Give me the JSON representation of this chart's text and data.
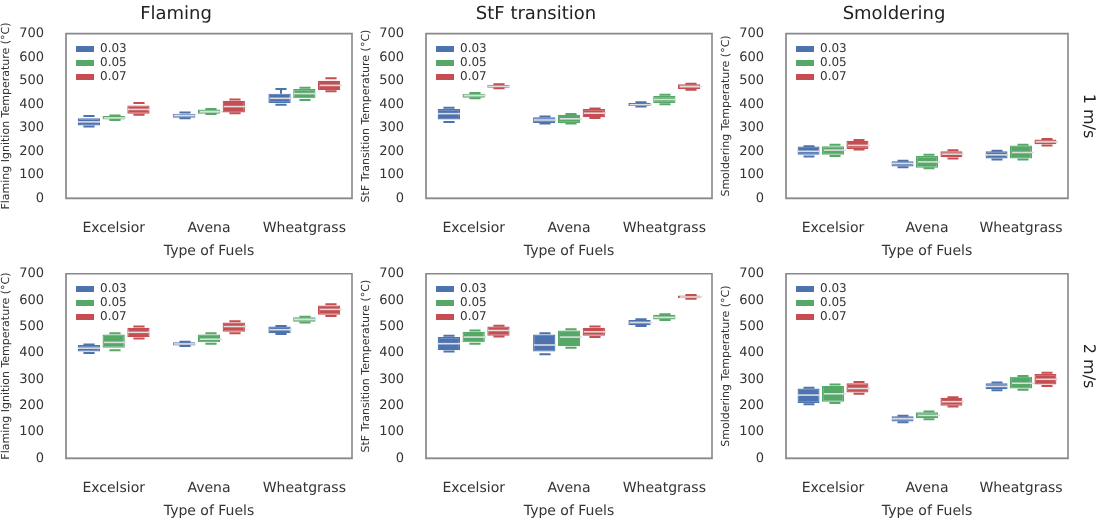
{
  "chart_data": [
    {
      "type": "box",
      "title": "Flaming",
      "xlabel": "Type of Fuels",
      "ylabel": "Flaming Ignition Temperature (°C)",
      "categories": [
        "Excelsior",
        "Avena",
        "Wheatgrass"
      ],
      "ylim": [
        0,
        700
      ],
      "yticks": [
        0,
        100,
        200,
        300,
        400,
        500,
        600,
        700
      ],
      "grid": false,
      "legend": "top left",
      "series": [
        {
          "name": "0.03",
          "color": "#4c72b0",
          "boxes": [
            {
              "low": 305,
              "q1": 310,
              "median": 325,
              "q3": 340,
              "high": 350
            },
            {
              "low": 340,
              "q1": 343,
              "median": 352,
              "q3": 360,
              "high": 365
            },
            {
              "low": 398,
              "q1": 405,
              "median": 425,
              "q3": 445,
              "high": 465
            }
          ]
        },
        {
          "name": "0.05",
          "color": "#55a868",
          "boxes": [
            {
              "low": 333,
              "q1": 335,
              "median": 342,
              "q3": 350,
              "high": 352
            },
            {
              "low": 358,
              "q1": 360,
              "median": 368,
              "q3": 378,
              "high": 380
            },
            {
              "low": 418,
              "q1": 425,
              "median": 445,
              "q3": 465,
              "high": 470
            }
          ]
        },
        {
          "name": "0.07",
          "color": "#c44e52",
          "boxes": [
            {
              "low": 355,
              "q1": 360,
              "median": 378,
              "q3": 395,
              "high": 405
            },
            {
              "low": 362,
              "q1": 365,
              "median": 390,
              "q3": 415,
              "high": 420
            },
            {
              "low": 455,
              "q1": 460,
              "median": 480,
              "q3": 500,
              "high": 510
            }
          ]
        }
      ]
    },
    {
      "type": "box",
      "title": "StF transition",
      "xlabel": "Type of Fuels",
      "ylabel": "StF Transition Temperature (°C)",
      "categories": [
        "Excelsior",
        "Avena",
        "Wheatgrass"
      ],
      "ylim": [
        0,
        700
      ],
      "yticks": [
        0,
        100,
        200,
        300,
        400,
        500,
        600,
        700
      ],
      "grid": false,
      "legend": "top left",
      "series": [
        {
          "name": "0.03",
          "color": "#4c72b0",
          "boxes": [
            {
              "low": 325,
              "q1": 335,
              "median": 360,
              "q3": 380,
              "high": 385
            },
            {
              "low": 318,
              "q1": 320,
              "median": 333,
              "q3": 345,
              "high": 348
            },
            {
              "low": 390,
              "q1": 392,
              "median": 398,
              "q3": 405,
              "high": 408
            }
          ]
        },
        {
          "name": "0.05",
          "color": "#55a868",
          "boxes": [
            {
              "low": 425,
              "q1": 428,
              "median": 437,
              "q3": 445,
              "high": 448
            },
            {
              "low": 318,
              "q1": 320,
              "median": 338,
              "q3": 355,
              "high": 358
            },
            {
              "low": 400,
              "q1": 405,
              "median": 420,
              "q3": 435,
              "high": 440
            }
          ]
        },
        {
          "name": "0.07",
          "color": "#c44e52",
          "boxes": [
            {
              "low": 468,
              "q1": 470,
              "median": 476,
              "q3": 482,
              "high": 485
            },
            {
              "low": 342,
              "q1": 345,
              "median": 362,
              "q3": 380,
              "high": 382
            },
            {
              "low": 462,
              "q1": 465,
              "median": 475,
              "q3": 485,
              "high": 487
            }
          ]
        }
      ]
    },
    {
      "type": "box",
      "title": "Smoldering",
      "xlabel": "Type of Fuels",
      "ylabel": "Smoldering Temperature (°C)",
      "categories": [
        "Excelsior",
        "Avena",
        "Wheatgrass"
      ],
      "ylim": [
        0,
        700
      ],
      "yticks": [
        0,
        100,
        200,
        300,
        400,
        500,
        600,
        700
      ],
      "grid": false,
      "legend": "top left",
      "annotations": [
        "1 m/s"
      ],
      "series": [
        {
          "name": "0.03",
          "color": "#4c72b0",
          "boxes": [
            {
              "low": 178,
              "q1": 185,
              "median": 200,
              "q3": 220,
              "high": 222
            },
            {
              "low": 132,
              "q1": 135,
              "median": 148,
              "q3": 158,
              "high": 160
            },
            {
              "low": 165,
              "q1": 170,
              "median": 185,
              "q3": 200,
              "high": 202
            }
          ]
        },
        {
          "name": "0.05",
          "color": "#55a868",
          "boxes": [
            {
              "low": 180,
              "q1": 185,
              "median": 205,
              "q3": 222,
              "high": 228
            },
            {
              "low": 128,
              "q1": 130,
              "median": 155,
              "q3": 180,
              "high": 185
            },
            {
              "low": 165,
              "q1": 170,
              "median": 195,
              "q3": 225,
              "high": 228
            }
          ]
        },
        {
          "name": "0.07",
          "color": "#c44e52",
          "boxes": [
            {
              "low": 208,
              "q1": 210,
              "median": 225,
              "q3": 245,
              "high": 248
            },
            {
              "low": 170,
              "q1": 175,
              "median": 188,
              "q3": 200,
              "high": 205
            },
            {
              "low": 225,
              "q1": 230,
              "median": 240,
              "q3": 250,
              "high": 252
            }
          ]
        }
      ]
    },
    {
      "type": "box",
      "xlabel": "Type of Fuels",
      "ylabel": "Flaming Ignition Temperature (°C)",
      "categories": [
        "Excelsior",
        "Avena",
        "Wheatgrass"
      ],
      "ylim": [
        0,
        700
      ],
      "yticks": [
        0,
        100,
        200,
        300,
        400,
        500,
        600,
        700
      ],
      "grid": false,
      "legend": "top left",
      "series": [
        {
          "name": "0.03",
          "color": "#4c72b0",
          "boxes": [
            {
              "low": 400,
              "q1": 405,
              "median": 418,
              "q3": 430,
              "high": 432
            },
            {
              "low": 426,
              "q1": 428,
              "median": 434,
              "q3": 440,
              "high": 442
            },
            {
              "low": 472,
              "q1": 475,
              "median": 488,
              "q3": 500,
              "high": 502
            }
          ]
        },
        {
          "name": "0.05",
          "color": "#55a868",
          "boxes": [
            {
              "low": 410,
              "q1": 420,
              "median": 440,
              "q3": 470,
              "high": 475
            },
            {
              "low": 435,
              "q1": 440,
              "median": 452,
              "q3": 470,
              "high": 475
            },
            {
              "low": 515,
              "q1": 518,
              "median": 527,
              "q3": 535,
              "high": 537
            }
          ]
        },
        {
          "name": "0.07",
          "color": "#c44e52",
          "boxes": [
            {
              "low": 455,
              "q1": 460,
              "median": 478,
              "q3": 495,
              "high": 500
            },
            {
              "low": 475,
              "q1": 480,
              "median": 500,
              "q3": 515,
              "high": 520
            },
            {
              "low": 540,
              "q1": 545,
              "median": 565,
              "q3": 580,
              "high": 585
            }
          ]
        }
      ]
    },
    {
      "type": "box",
      "xlabel": "Type of Fuels",
      "ylabel": "StF Transition Temperature (°C)",
      "categories": [
        "Excelsior",
        "Avena",
        "Wheatgrass"
      ],
      "ylim": [
        0,
        700
      ],
      "yticks": [
        0,
        100,
        200,
        300,
        400,
        500,
        600,
        700
      ],
      "grid": false,
      "legend": "top left",
      "series": [
        {
          "name": "0.03",
          "color": "#4c72b0",
          "boxes": [
            {
              "low": 405,
              "q1": 410,
              "median": 435,
              "q3": 460,
              "high": 465
            },
            {
              "low": 395,
              "q1": 405,
              "median": 430,
              "q3": 470,
              "high": 475
            },
            {
              "low": 502,
              "q1": 505,
              "median": 515,
              "q3": 525,
              "high": 528
            }
          ]
        },
        {
          "name": "0.05",
          "color": "#55a868",
          "boxes": [
            {
              "low": 435,
              "q1": 440,
              "median": 460,
              "q3": 480,
              "high": 485
            },
            {
              "low": 420,
              "q1": 425,
              "median": 460,
              "q3": 485,
              "high": 490
            },
            {
              "low": 525,
              "q1": 527,
              "median": 535,
              "q3": 545,
              "high": 547
            }
          ]
        },
        {
          "name": "0.07",
          "color": "#c44e52",
          "boxes": [
            {
              "low": 462,
              "q1": 465,
              "median": 485,
              "q3": 500,
              "high": 503
            },
            {
              "low": 460,
              "q1": 465,
              "median": 480,
              "q3": 495,
              "high": 500
            },
            {
              "low": 605,
              "q1": 607,
              "median": 612,
              "q3": 618,
              "high": 620
            }
          ]
        }
      ]
    },
    {
      "type": "box",
      "xlabel": "Type of Fuels",
      "ylabel": "Smoldering Temperature (°C)",
      "categories": [
        "Excelsior",
        "Avena",
        "Wheatgrass"
      ],
      "ylim": [
        0,
        700
      ],
      "yticks": [
        0,
        100,
        200,
        300,
        400,
        500,
        600,
        700
      ],
      "grid": false,
      "legend": "top left",
      "annotations": [
        "2 m/s"
      ],
      "series": [
        {
          "name": "0.03",
          "color": "#4c72b0",
          "boxes": [
            {
              "low": 205,
              "q1": 210,
              "median": 240,
              "q3": 265,
              "high": 268
            },
            {
              "low": 137,
              "q1": 140,
              "median": 150,
              "q3": 160,
              "high": 162
            },
            {
              "low": 258,
              "q1": 262,
              "median": 273,
              "q3": 285,
              "high": 288
            }
          ]
        },
        {
          "name": "0.05",
          "color": "#55a868",
          "boxes": [
            {
              "low": 210,
              "q1": 215,
              "median": 245,
              "q3": 275,
              "high": 280
            },
            {
              "low": 148,
              "q1": 152,
              "median": 163,
              "q3": 175,
              "high": 178
            },
            {
              "low": 260,
              "q1": 265,
              "median": 285,
              "q3": 310,
              "high": 312
            }
          ]
        },
        {
          "name": "0.07",
          "color": "#c44e52",
          "boxes": [
            {
              "low": 245,
              "q1": 250,
              "median": 265,
              "q3": 285,
              "high": 290
            },
            {
              "low": 197,
              "q1": 200,
              "median": 215,
              "q3": 230,
              "high": 232
            },
            {
              "low": 275,
              "q1": 280,
              "median": 300,
              "q3": 320,
              "high": 325
            }
          ]
        }
      ]
    }
  ]
}
